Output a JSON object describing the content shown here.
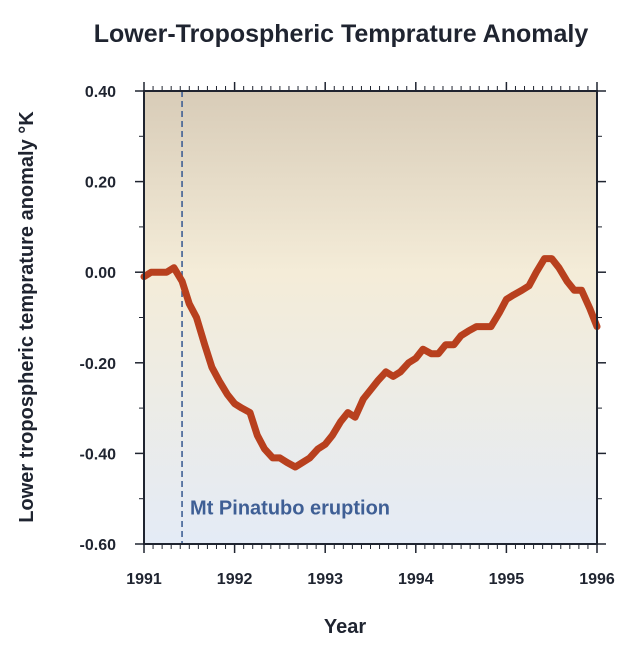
{
  "chart_data": {
    "type": "line",
    "title": "Lower-Tropospheric Temprature Anomaly",
    "xlabel": "Year",
    "ylabel": "Lower tropospheric temprature anomaly °K",
    "xlim": [
      1991,
      1996
    ],
    "ylim": [
      -0.6,
      0.4
    ],
    "xticks": [
      1991,
      1992,
      1993,
      1994,
      1995,
      1996
    ],
    "yticks": [
      0.4,
      0.2,
      0.0,
      -0.2,
      -0.4,
      -0.6
    ],
    "ytick_labels": [
      "0.40",
      "0.20",
      "0.00",
      "-0.20",
      "-0.40",
      "-0.60"
    ],
    "xtick_labels": [
      "1991",
      "1992",
      "1993",
      "1994",
      "1995",
      "1996"
    ],
    "grid": false,
    "annotation": {
      "text": "Mt Pinatubo eruption",
      "x": 1991.42,
      "color": "#3f5f95"
    },
    "colors": {
      "line": "#b8401e",
      "annotation": "#3f5f95",
      "bg_top": "#d8ccb8",
      "bg_mid": "#f4ecd8",
      "bg_bottom": "#e4ebf6"
    },
    "series": [
      {
        "x": [
          1991.0,
          1991.08,
          1991.17,
          1991.25,
          1991.33,
          1991.42,
          1991.5,
          1991.58,
          1991.67,
          1991.75,
          1991.83,
          1991.92,
          1992.0,
          1992.08,
          1992.17,
          1992.25,
          1992.33,
          1992.42,
          1992.5,
          1992.58,
          1992.67,
          1992.75,
          1992.83,
          1992.92,
          1993.0,
          1993.08,
          1993.17,
          1993.25,
          1993.33,
          1993.42,
          1993.5,
          1993.58,
          1993.67,
          1993.75,
          1993.83,
          1993.92,
          1994.0,
          1994.08,
          1994.17,
          1994.25,
          1994.33,
          1994.42,
          1994.5,
          1994.58,
          1994.67,
          1994.75,
          1994.83,
          1994.92,
          1995.0,
          1995.08,
          1995.17,
          1995.25,
          1995.33,
          1995.42,
          1995.5,
          1995.58,
          1995.67,
          1995.75,
          1995.83,
          1995.92,
          1996.0
        ],
        "values": [
          -0.01,
          0.0,
          0.0,
          0.0,
          0.01,
          -0.02,
          -0.07,
          -0.1,
          -0.16,
          -0.21,
          -0.24,
          -0.27,
          -0.29,
          -0.3,
          -0.31,
          -0.36,
          -0.39,
          -0.41,
          -0.41,
          -0.42,
          -0.43,
          -0.42,
          -0.41,
          -0.39,
          -0.38,
          -0.36,
          -0.33,
          -0.31,
          -0.32,
          -0.28,
          -0.26,
          -0.24,
          -0.22,
          -0.23,
          -0.22,
          -0.2,
          -0.19,
          -0.17,
          -0.18,
          -0.18,
          -0.16,
          -0.16,
          -0.14,
          -0.13,
          -0.12,
          -0.12,
          -0.12,
          -0.09,
          -0.06,
          -0.05,
          -0.04,
          -0.03,
          0.0,
          0.03,
          0.03,
          0.01,
          -0.02,
          -0.04,
          -0.04,
          -0.08,
          -0.12
        ]
      }
    ]
  }
}
